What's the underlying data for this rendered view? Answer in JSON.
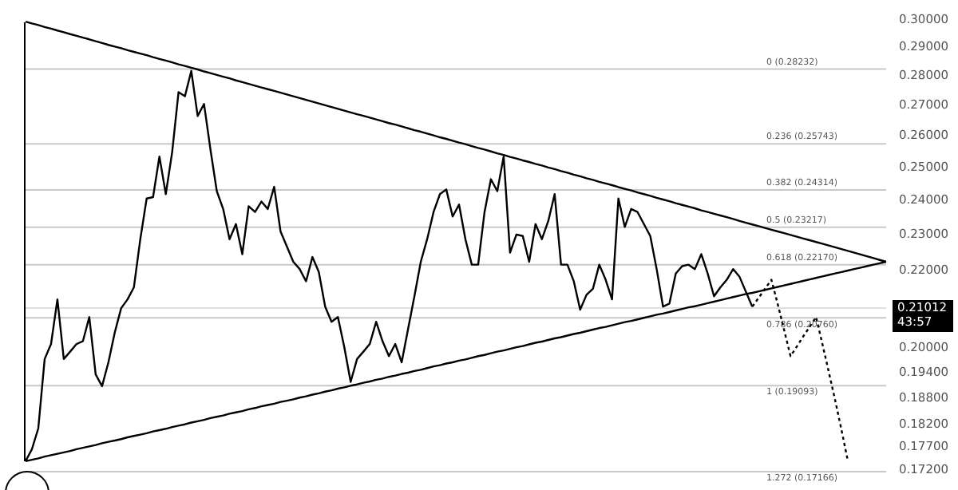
{
  "chart_data": {
    "type": "line",
    "marker": "none",
    "tick_labels": "y",
    "ylim": [
      0.172,
      0.3
    ],
    "log": "y",
    "categories": [
      null,
      null,
      null,
      null,
      null,
      null,
      null,
      null,
      null,
      null,
      null,
      null,
      null,
      null,
      null,
      null,
      null,
      null,
      null,
      null,
      null,
      null,
      null,
      null,
      null,
      null,
      null,
      null,
      null,
      null,
      null,
      null,
      null,
      null,
      null,
      null,
      null,
      null,
      null,
      null,
      null,
      null,
      null,
      null,
      null,
      null,
      null,
      null,
      null,
      null,
      null,
      null,
      null,
      null,
      null,
      null,
      null,
      null,
      null,
      null,
      null,
      null,
      null,
      null,
      null,
      null,
      null,
      null,
      null,
      null,
      null,
      null,
      null,
      null,
      null,
      null,
      null,
      null,
      null,
      null,
      null,
      null,
      null,
      null,
      null,
      null,
      null,
      null,
      null,
      null,
      null,
      null,
      null,
      null,
      null,
      null,
      null,
      null,
      null,
      null,
      null,
      null,
      null,
      null,
      null,
      null,
      null,
      null,
      null,
      null,
      null,
      null,
      null,
      null,
      null,
      null,
      null,
      null,
      null,
      null,
      null,
      null,
      null,
      null,
      null,
      null,
      null,
      null,
      null,
      null,
      null,
      null,
      null,
      null,
      null,
      null
    ],
    "yticks": [
      {
        "value": 0.3,
        "label": "0.30000"
      },
      {
        "value": 0.29,
        "label": "0.29000"
      },
      {
        "value": 0.28,
        "label": "0.28000"
      },
      {
        "value": 0.27,
        "label": "0.27000"
      },
      {
        "value": 0.26,
        "label": "0.26000"
      },
      {
        "value": 0.25,
        "label": "0.25000"
      },
      {
        "value": 0.24,
        "label": "0.24000"
      },
      {
        "value": 0.23,
        "label": "0.23000"
      },
      {
        "value": 0.22,
        "label": "0.22000"
      },
      {
        "value": 0.2,
        "label": "0.20000"
      },
      {
        "value": 0.194,
        "label": "0.19400"
      },
      {
        "value": 0.188,
        "label": "0.18800"
      },
      {
        "value": 0.182,
        "label": "0.18200"
      },
      {
        "value": 0.177,
        "label": "0.17700"
      },
      {
        "value": 0.172,
        "label": "0.17200"
      }
    ],
    "series": [
      {
        "color": "#000000",
        "line_style": "solid",
        "values": [
          0.2994,
          0.2987,
          0.2981,
          0.2974,
          0.2968,
          0.2961,
          0.2955,
          0.2948,
          0.2942,
          0.2935,
          0.2929,
          0.2922,
          0.2916,
          0.2909,
          0.2903,
          0.2897,
          0.289,
          0.2884,
          0.2878,
          0.2872,
          0.2865,
          0.2859,
          0.2853,
          0.2847,
          0.284,
          0.2834,
          0.2828,
          0.2822,
          0.2815,
          0.2809,
          0.2803,
          0.2797,
          0.2791,
          0.2784,
          0.2778,
          0.2772,
          0.2766,
          0.276,
          0.2754,
          0.2748,
          0.2742,
          0.2736,
          0.273,
          0.2724,
          0.2718,
          0.2712,
          0.2706,
          0.27,
          0.2694,
          0.2688,
          0.2682,
          0.2676,
          0.267,
          0.2665,
          0.2659,
          0.2653,
          0.2647,
          0.2641,
          0.2636,
          0.263,
          0.2624,
          0.2618,
          0.2613,
          0.2607,
          0.2601,
          0.2595,
          0.259,
          0.2584,
          0.2578,
          0.2573,
          0.2567,
          0.2561,
          0.2556,
          0.255,
          0.2544,
          0.2539,
          0.2533,
          0.2528,
          0.2522,
          0.2517,
          0.2511,
          0.2506,
          0.25,
          0.2495,
          0.2489,
          0.2484,
          0.2478,
          0.2473,
          0.2467,
          0.2462,
          0.2456,
          0.2451,
          0.2446,
          0.244,
          0.2435,
          0.243,
          0.2424,
          0.2419,
          0.2414,
          0.2408,
          0.2403,
          0.2398,
          0.2392,
          0.2387,
          0.2382,
          0.2377,
          0.2371,
          0.2366,
          0.2361,
          0.2356,
          0.2351,
          0.2346,
          0.234,
          0.2335,
          0.233,
          0.2325,
          0.232,
          0.2315,
          0.231,
          0.2305,
          0.23,
          0.2295,
          0.229,
          0.2285,
          0.228,
          0.2275,
          0.227,
          0.2265,
          0.226,
          0.2255,
          0.225,
          0.2245,
          0.224,
          0.2235,
          0.223,
          0.2225
        ]
      },
      {
        "color": "#000000",
        "line_style": "solid",
        "values": [
          0.1739,
          0.1742,
          0.1745,
          0.1749,
          0.1752,
          0.1755,
          0.1758,
          0.1761,
          0.1765,
          0.1768,
          0.1771,
          0.1774,
          0.1778,
          0.1781,
          0.1784,
          0.1787,
          0.1791,
          0.1794,
          0.1797,
          0.18,
          0.1804,
          0.1807,
          0.181,
          0.1814,
          0.1817,
          0.182,
          0.1824,
          0.1827,
          0.183,
          0.1834,
          0.1837,
          0.184,
          0.1844,
          0.1847,
          0.185,
          0.1854,
          0.1857,
          0.1861,
          0.1864,
          0.1867,
          0.1871,
          0.1874,
          0.1877,
          0.1881,
          0.1884,
          0.1888,
          0.1891,
          0.1895,
          0.1898,
          0.1902,
          0.1905,
          0.1909,
          0.1912,
          0.1916,
          0.1919,
          0.1923,
          0.1926,
          0.193,
          0.1933,
          0.1937,
          0.194,
          0.1944,
          0.1947,
          0.1951,
          0.1955,
          0.1958,
          0.1962,
          0.1965,
          0.1969,
          0.1972,
          0.1976,
          0.198,
          0.1983,
          0.1987,
          0.1991,
          0.1994,
          0.1998,
          0.2002,
          0.2005,
          0.2009,
          0.2013,
          0.2016,
          0.202,
          0.2024,
          0.2027,
          0.2031,
          0.2035,
          0.2038,
          0.2042,
          0.2046,
          0.205,
          0.2053,
          0.2057,
          0.2061,
          0.2065,
          0.2068,
          0.2072,
          0.2076,
          0.208,
          0.2084,
          0.2087,
          0.2091,
          0.2095,
          0.2099,
          0.2103,
          0.2106,
          0.211,
          0.2114,
          0.2118,
          0.2122,
          0.2126,
          0.213,
          0.2134,
          0.2138,
          0.2141,
          0.2145,
          0.2149,
          0.2153,
          0.2157,
          0.2161,
          0.2165,
          0.2169,
          0.2173,
          0.2177,
          0.2181,
          0.2185,
          0.2189,
          0.2193,
          0.2197,
          0.2201,
          0.2205,
          0.2209,
          0.2213,
          0.2217,
          0.2221,
          0.2225
        ]
      },
      {
        "color": "#000000",
        "line_style": "solid",
        "values": [
          0.1739,
          0.1765,
          0.1811,
          0.1973,
          0.201,
          0.2124,
          0.1973,
          0.1991,
          0.201,
          0.2017,
          0.2078,
          0.1936,
          0.1908,
          0.1965,
          0.2039,
          0.2101,
          0.2124,
          0.2156,
          0.2288,
          0.2406,
          0.241,
          0.2534,
          0.2419,
          0.2548,
          0.2744,
          0.273,
          0.2817,
          0.2664,
          0.2704,
          0.2557,
          0.2428,
          0.2375,
          0.2288,
          0.2331,
          0.2246,
          0.2383,
          0.2366,
          0.2397,
          0.2375,
          0.2441,
          0.231,
          0.2267,
          0.2225,
          0.2205,
          0.2172,
          0.2238,
          0.2197,
          0.2105,
          0.2066,
          0.2078,
          0.2002,
          0.1918,
          0.1973,
          0.1991,
          0.201,
          0.2066,
          0.2017,
          0.198,
          0.201,
          0.1965,
          0.2047,
          0.2132,
          0.2225,
          0.2288,
          0.2366,
          0.2419,
          0.2433,
          0.2353,
          0.2388,
          0.2288,
          0.2217,
          0.2217,
          0.2366,
          0.2464,
          0.2428,
          0.2534,
          0.225,
          0.2301,
          0.2297,
          0.2225,
          0.2331,
          0.2288,
          0.234,
          0.2419,
          0.2217,
          0.2217,
          0.2172,
          0.2097,
          0.2136,
          0.2152,
          0.2217,
          0.2176,
          0.2124,
          0.2406,
          0.2323,
          0.2375,
          0.2366,
          0.2331,
          0.2297,
          0.2205,
          0.2105,
          0.2113,
          0.2193,
          0.2213,
          0.2217,
          0.2205,
          0.2246,
          0.2193,
          0.2132,
          0.2156,
          0.2176,
          0.2205,
          0.2184,
          0.2144,
          0.2105,
          null,
          null,
          null,
          null,
          null,
          null,
          null,
          null,
          null,
          null,
          null,
          null,
          null,
          null,
          null,
          null,
          null,
          null,
          null,
          null,
          null
        ]
      },
      {
        "color": "#000000",
        "line_style": "dotted",
        "values": [
          null,
          null,
          null,
          null,
          null,
          null,
          null,
          null,
          null,
          null,
          null,
          null,
          null,
          null,
          null,
          null,
          null,
          null,
          null,
          null,
          null,
          null,
          null,
          null,
          null,
          null,
          null,
          null,
          null,
          null,
          null,
          null,
          null,
          null,
          null,
          null,
          null,
          null,
          null,
          null,
          null,
          null,
          null,
          null,
          null,
          null,
          null,
          null,
          null,
          null,
          null,
          null,
          null,
          null,
          null,
          null,
          null,
          null,
          null,
          null,
          null,
          null,
          null,
          null,
          null,
          null,
          null,
          null,
          null,
          null,
          null,
          null,
          null,
          null,
          null,
          null,
          null,
          null,
          null,
          null,
          null,
          null,
          null,
          null,
          null,
          null,
          null,
          null,
          null,
          null,
          null,
          null,
          null,
          null,
          null,
          null,
          null,
          null,
          null,
          null,
          null,
          null,
          null,
          null,
          null,
          null,
          null,
          null,
          null,
          null,
          null,
          null,
          null,
          null,
          0.2105,
          0.2128,
          0.2152,
          0.2176,
          0.2111,
          0.2045,
          0.198,
          0.2004,
          0.2029,
          0.2053,
          0.2078,
          0.201,
          0.1942,
          0.1875,
          0.1807,
          0.1739,
          null,
          null,
          null,
          null,
          null,
          null
        ]
      }
    ],
    "ref_lines": [
      {
        "axis": "y",
        "value": 0.28232,
        "label": "0 (0.28232)",
        "color": "#c8c8c8"
      },
      {
        "axis": "y",
        "value": 0.25743,
        "label": "0.236 (0.25743)",
        "color": "#c8c8c8"
      },
      {
        "axis": "y",
        "value": 0.24314,
        "label": "0.382 (0.24314)",
        "color": "#c8c8c8"
      },
      {
        "axis": "y",
        "value": 0.23217,
        "label": "0.5 (0.23217)",
        "color": "#c8c8c8"
      },
      {
        "axis": "y",
        "value": 0.2217,
        "label": "0.618 (0.22170)",
        "color": "#c8c8c8"
      },
      {
        "axis": "y",
        "value": 0.2076,
        "label": "0.786 (0.20760)",
        "color": "#c8c8c8"
      },
      {
        "axis": "y",
        "value": 0.19093,
        "label": "1 (0.19093)",
        "color": "#c8c8c8"
      },
      {
        "axis": "y",
        "value": 0.17166,
        "label": "1.272 (0.17166)",
        "color": "#c8c8c8"
      },
      {
        "axis": "y",
        "value": 0.21012,
        "color": "#e0e0e0"
      }
    ],
    "annotations": [
      "0.21012",
      "43:57"
    ]
  }
}
